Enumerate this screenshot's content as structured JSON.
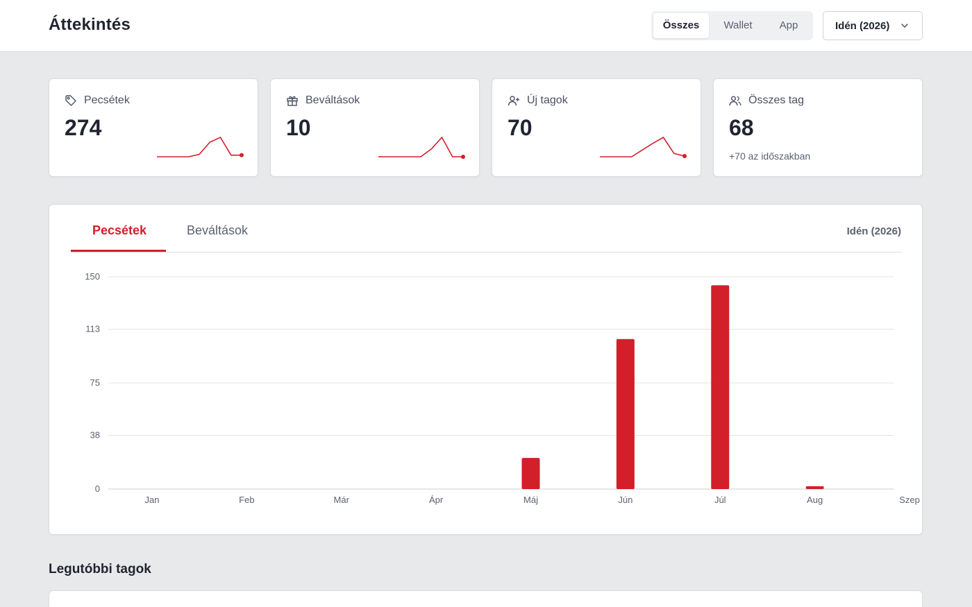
{
  "header": {
    "title": "Áttekintés",
    "segments": [
      {
        "label": "Összes",
        "active": true
      },
      {
        "label": "Wallet",
        "active": false
      },
      {
        "label": "App",
        "active": false
      }
    ],
    "period": "Idén (2026)"
  },
  "stats": [
    {
      "label": "Pecsétek",
      "icon": "tag-icon",
      "value": "274",
      "sparkline": [
        0,
        0,
        0,
        0,
        3,
        18,
        24,
        2,
        2
      ]
    },
    {
      "label": "Beváltások",
      "icon": "gift-icon",
      "value": "10",
      "sparkline": [
        0,
        0,
        0,
        0,
        0,
        2,
        5,
        0,
        0
      ]
    },
    {
      "label": "Új tagok",
      "icon": "user-plus-icon",
      "value": "70",
      "sparkline": [
        0,
        0,
        0,
        0,
        10,
        20,
        29,
        5,
        1
      ]
    },
    {
      "label": "Összes tag",
      "icon": "users-icon",
      "value": "68",
      "sub": "+70 az időszakban"
    }
  ],
  "chart_section": {
    "tabs": [
      {
        "label": "Pecsétek",
        "active": true
      },
      {
        "label": "Beváltások",
        "active": false
      }
    ],
    "period": "Idén (2026)"
  },
  "chart_data": {
    "type": "bar",
    "categories": [
      "Jan",
      "Feb",
      "Már",
      "Ápr",
      "Máj",
      "Jún",
      "Júl",
      "Aug",
      "Szep"
    ],
    "values": [
      0,
      0,
      0,
      0,
      22,
      106,
      144,
      2,
      0
    ],
    "yticks": [
      0,
      38,
      75,
      113,
      150
    ],
    "ylim": [
      0,
      150
    ],
    "grid": true,
    "color": "#d21f2a"
  },
  "members": {
    "title": "Legutóbbi tagok"
  },
  "colors": {
    "accent": "#d21f2a",
    "background": "#e8e9eb"
  }
}
